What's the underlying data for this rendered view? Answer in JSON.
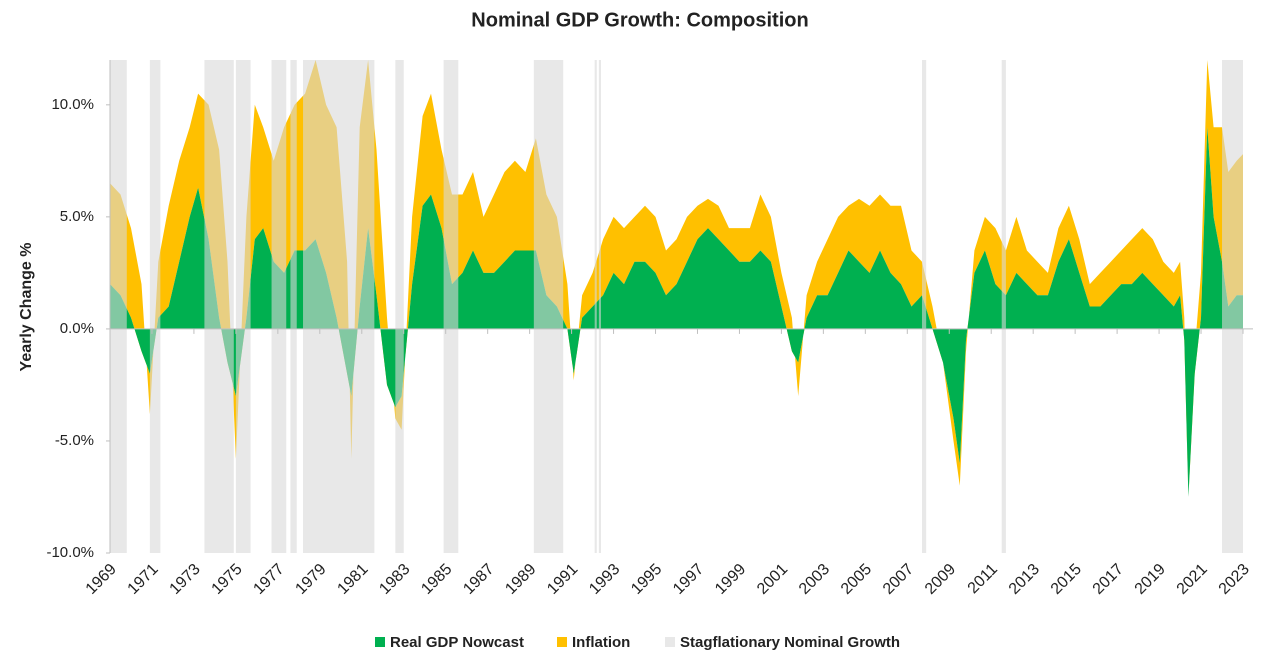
{
  "chart_data": {
    "type": "stacked-area",
    "title": "Nominal GDP Growth: Composition",
    "y_label": "Yearly Change %",
    "xlim": [
      1969,
      2023
    ],
    "xticks": [
      1969,
      1971,
      1973,
      1975,
      1977,
      1979,
      1981,
      1983,
      1985,
      1987,
      1989,
      1991,
      1993,
      1995,
      1997,
      1999,
      2001,
      2003,
      2005,
      2007,
      2009,
      2011,
      2013,
      2015,
      2017,
      2019,
      2021,
      2023
    ],
    "ylim": [
      -10,
      12
    ],
    "yticks": [
      {
        "value": -10,
        "label": "-10.0%"
      },
      {
        "value": -5,
        "label": "-5.0%"
      },
      {
        "value": 0,
        "label": "0.0%"
      },
      {
        "value": 5,
        "label": "5.0%"
      },
      {
        "value": 10,
        "label": "10.0%"
      }
    ],
    "x": [
      1969.0,
      1969.5,
      1970.0,
      1970.5,
      1970.9,
      1971.3,
      1971.8,
      1972.3,
      1972.8,
      1973.2,
      1973.7,
      1974.2,
      1974.6,
      1975.0,
      1975.5,
      1975.9,
      1976.3,
      1976.8,
      1977.3,
      1977.8,
      1978.3,
      1978.8,
      1979.3,
      1979.8,
      1980.3,
      1980.5,
      1980.9,
      1981.3,
      1981.7,
      1982.2,
      1982.6,
      1982.9,
      1983.4,
      1983.9,
      1984.3,
      1984.8,
      1985.3,
      1985.8,
      1986.3,
      1986.8,
      1987.3,
      1987.8,
      1988.3,
      1988.8,
      1989.3,
      1989.8,
      1990.3,
      1990.8,
      1991.1,
      1991.5,
      1992.0,
      1992.5,
      1993.0,
      1993.5,
      1994.0,
      1994.5,
      1995.0,
      1995.5,
      1996.0,
      1996.5,
      1997.0,
      1997.5,
      1998.0,
      1998.5,
      1999.0,
      1999.5,
      2000.0,
      2000.5,
      2001.0,
      2001.5,
      2001.8,
      2002.2,
      2002.7,
      2003.2,
      2003.7,
      2004.2,
      2004.7,
      2005.2,
      2005.7,
      2006.2,
      2006.7,
      2007.2,
      2007.7,
      2008.2,
      2008.7,
      2009.2,
      2009.5,
      2009.8,
      2010.2,
      2010.7,
      2011.2,
      2011.7,
      2012.2,
      2012.7,
      2013.2,
      2013.7,
      2014.2,
      2014.7,
      2015.2,
      2015.7,
      2016.2,
      2016.7,
      2017.2,
      2017.7,
      2018.2,
      2018.7,
      2019.2,
      2019.7,
      2020.0,
      2020.2,
      2020.4,
      2020.7,
      2021.0,
      2021.3,
      2021.6,
      2022.0,
      2022.3,
      2022.7,
      2023.0
    ],
    "series": [
      {
        "name": "Real GDP Nowcast",
        "color": "#00b050",
        "values": [
          2.0,
          1.5,
          0.5,
          -1.0,
          -2.0,
          0.5,
          1.0,
          3.0,
          5.0,
          6.3,
          4.0,
          0.5,
          -1.5,
          -3.0,
          0.5,
          4.0,
          4.5,
          3.0,
          2.5,
          3.5,
          3.5,
          4.0,
          2.5,
          0.5,
          -2.0,
          -3.0,
          1.0,
          4.5,
          1.5,
          -2.5,
          -3.5,
          -3.0,
          2.0,
          5.5,
          6.0,
          4.5,
          2.0,
          2.5,
          3.5,
          2.5,
          2.5,
          3.0,
          3.5,
          3.5,
          3.5,
          1.5,
          1.0,
          0.0,
          -2.0,
          0.5,
          1.0,
          1.5,
          2.5,
          2.0,
          3.0,
          3.0,
          2.5,
          1.5,
          2.0,
          3.0,
          4.0,
          4.5,
          4.0,
          3.5,
          3.0,
          3.0,
          3.5,
          3.0,
          1.0,
          -1.0,
          -1.5,
          0.5,
          1.5,
          1.5,
          2.5,
          3.5,
          3.0,
          2.5,
          3.5,
          2.5,
          2.0,
          1.0,
          1.5,
          0.0,
          -1.5,
          -4.0,
          -6.0,
          -0.5,
          2.5,
          3.5,
          2.0,
          1.5,
          2.5,
          2.0,
          1.5,
          1.5,
          3.0,
          4.0,
          2.5,
          1.0,
          1.0,
          1.5,
          2.0,
          2.0,
          2.5,
          2.0,
          1.5,
          1.0,
          1.5,
          -0.5,
          -7.5,
          -2.0,
          0.5,
          9.0,
          5.0,
          3.0,
          1.0,
          1.5,
          1.5
        ]
      },
      {
        "name": "Inflation",
        "color": "#ffc000",
        "values": [
          4.5,
          4.5,
          4.0,
          3.0,
          -1.8,
          2.5,
          4.5,
          4.5,
          4.0,
          4.2,
          6.0,
          7.5,
          4.5,
          -2.8,
          4.5,
          6.0,
          4.5,
          4.5,
          6.5,
          6.5,
          7.0,
          8.0,
          7.5,
          8.5,
          5.0,
          -2.8,
          8.0,
          7.5,
          6.5,
          3.0,
          -0.5,
          -1.5,
          3.0,
          4.0,
          4.5,
          3.5,
          4.0,
          3.5,
          3.5,
          2.5,
          3.5,
          4.0,
          4.0,
          3.5,
          5.0,
          4.5,
          4.0,
          2.0,
          -0.3,
          1.0,
          1.5,
          2.5,
          2.5,
          2.5,
          2.0,
          2.5,
          2.5,
          2.0,
          2.0,
          2.0,
          1.5,
          1.3,
          1.5,
          1.0,
          1.5,
          1.5,
          2.5,
          2.0,
          1.5,
          1.5,
          -1.5,
          1.0,
          1.5,
          2.5,
          2.5,
          2.0,
          2.8,
          3.0,
          2.5,
          3.0,
          3.5,
          2.5,
          1.5,
          1.0,
          0.0,
          -1.0,
          -1.0,
          -0.5,
          1.0,
          1.5,
          2.5,
          2.0,
          2.5,
          1.5,
          1.5,
          1.0,
          1.5,
          1.5,
          1.5,
          1.0,
          1.5,
          1.5,
          1.5,
          2.0,
          2.0,
          2.0,
          1.5,
          1.5,
          1.5,
          1.0,
          0.0,
          1.0,
          2.0,
          3.0,
          4.0,
          6.0,
          6.0,
          6.0,
          6.3
        ]
      }
    ],
    "shading": {
      "name": "Stagflationary Nominal Growth",
      "color": "#d9d9d9",
      "periods": [
        [
          1969.0,
          1969.8
        ],
        [
          1970.9,
          1971.4
        ],
        [
          1973.5,
          1974.9
        ],
        [
          1975.0,
          1975.7
        ],
        [
          1976.7,
          1977.4
        ],
        [
          1977.6,
          1977.9
        ],
        [
          1978.2,
          1981.6
        ],
        [
          1982.6,
          1983.0
        ],
        [
          1984.9,
          1985.6
        ],
        [
          1989.2,
          1990.6
        ],
        [
          1992.1,
          1992.2
        ],
        [
          1992.3,
          1992.4
        ],
        [
          2007.7,
          2007.9
        ],
        [
          2011.5,
          2011.7
        ],
        [
          2022.0,
          2023.0
        ]
      ]
    }
  }
}
